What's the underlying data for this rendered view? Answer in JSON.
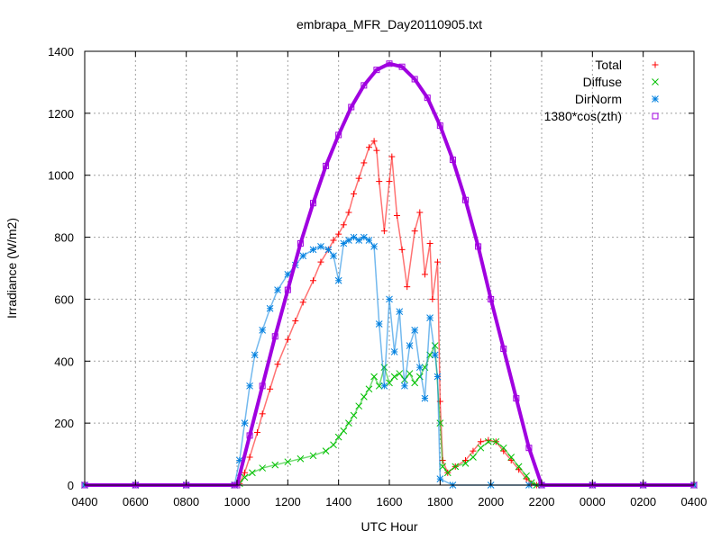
{
  "chart_data": {
    "type": "scatter",
    "title": "embrapa_MFR_Day20110905.txt",
    "xlabel": "UTC Hour",
    "ylabel": "Irradiance (W/m2)",
    "x_tick_labels": [
      "0400",
      "0600",
      "0800",
      "1000",
      "1200",
      "1400",
      "1600",
      "1800",
      "2000",
      "2200",
      "0000",
      "0200",
      "0400"
    ],
    "xlim": [
      4,
      28
    ],
    "ylim": [
      0,
      1400
    ],
    "y_ticks": [
      0,
      200,
      400,
      600,
      800,
      1000,
      1200,
      1400
    ],
    "grid": true,
    "legend_position": "top-right",
    "series": [
      {
        "name": "Total",
        "color": "#ff0000",
        "marker": "plus",
        "points": [
          [
            4,
            0
          ],
          [
            6,
            0
          ],
          [
            8,
            0
          ],
          [
            9.9,
            0
          ],
          [
            10.1,
            5
          ],
          [
            10.3,
            40
          ],
          [
            10.5,
            90
          ],
          [
            10.8,
            170
          ],
          [
            11,
            230
          ],
          [
            11.3,
            310
          ],
          [
            11.6,
            390
          ],
          [
            12,
            470
          ],
          [
            12.3,
            530
          ],
          [
            12.6,
            590
          ],
          [
            13,
            660
          ],
          [
            13.3,
            720
          ],
          [
            13.6,
            760
          ],
          [
            13.8,
            790
          ],
          [
            14,
            810
          ],
          [
            14.2,
            840
          ],
          [
            14.4,
            880
          ],
          [
            14.6,
            940
          ],
          [
            14.8,
            990
          ],
          [
            15,
            1040
          ],
          [
            15.2,
            1090
          ],
          [
            15.4,
            1110
          ],
          [
            15.5,
            1080
          ],
          [
            15.6,
            980
          ],
          [
            15.8,
            820
          ],
          [
            16,
            980
          ],
          [
            16.1,
            1060
          ],
          [
            16.3,
            870
          ],
          [
            16.5,
            760
          ],
          [
            16.7,
            640
          ],
          [
            17,
            820
          ],
          [
            17.2,
            880
          ],
          [
            17.4,
            680
          ],
          [
            17.6,
            780
          ],
          [
            17.7,
            600
          ],
          [
            17.9,
            720
          ],
          [
            18,
            270
          ],
          [
            18.1,
            80
          ],
          [
            18.3,
            40
          ],
          [
            18.6,
            60
          ],
          [
            19,
            80
          ],
          [
            19.3,
            110
          ],
          [
            19.6,
            140
          ],
          [
            19.9,
            145
          ],
          [
            20.2,
            140
          ],
          [
            20.5,
            110
          ],
          [
            20.8,
            80
          ],
          [
            21.1,
            50
          ],
          [
            21.4,
            20
          ],
          [
            21.6,
            5
          ],
          [
            21.8,
            0
          ],
          [
            24,
            0
          ],
          [
            26,
            0
          ],
          [
            28,
            0
          ]
        ]
      },
      {
        "name": "Diffuse",
        "color": "#00c000",
        "marker": "cross",
        "points": [
          [
            4,
            0
          ],
          [
            6,
            0
          ],
          [
            8,
            0
          ],
          [
            9.9,
            0
          ],
          [
            10.1,
            5
          ],
          [
            10.3,
            25
          ],
          [
            10.6,
            40
          ],
          [
            11,
            55
          ],
          [
            11.5,
            65
          ],
          [
            12,
            75
          ],
          [
            12.5,
            85
          ],
          [
            13,
            95
          ],
          [
            13.5,
            110
          ],
          [
            13.8,
            130
          ],
          [
            14,
            155
          ],
          [
            14.2,
            175
          ],
          [
            14.4,
            200
          ],
          [
            14.6,
            225
          ],
          [
            14.8,
            255
          ],
          [
            15,
            285
          ],
          [
            15.2,
            310
          ],
          [
            15.4,
            350
          ],
          [
            15.6,
            320
          ],
          [
            15.8,
            380
          ],
          [
            16,
            330
          ],
          [
            16.2,
            350
          ],
          [
            16.4,
            360
          ],
          [
            16.6,
            340
          ],
          [
            16.8,
            360
          ],
          [
            17,
            330
          ],
          [
            17.2,
            350
          ],
          [
            17.4,
            380
          ],
          [
            17.6,
            420
          ],
          [
            17.8,
            450
          ],
          [
            18,
            200
          ],
          [
            18.1,
            60
          ],
          [
            18.3,
            40
          ],
          [
            18.6,
            60
          ],
          [
            19,
            70
          ],
          [
            19.3,
            90
          ],
          [
            19.6,
            120
          ],
          [
            19.9,
            140
          ],
          [
            20.2,
            140
          ],
          [
            20.5,
            120
          ],
          [
            20.8,
            90
          ],
          [
            21.1,
            60
          ],
          [
            21.4,
            30
          ],
          [
            21.6,
            8
          ],
          [
            21.8,
            0
          ],
          [
            24,
            0
          ],
          [
            26,
            0
          ],
          [
            28,
            0
          ]
        ]
      },
      {
        "name": "DirNorm",
        "color": "#0080e0",
        "marker": "star",
        "points": [
          [
            4,
            0
          ],
          [
            6,
            0
          ],
          [
            8,
            0
          ],
          [
            9.9,
            0
          ],
          [
            10.1,
            80
          ],
          [
            10.3,
            200
          ],
          [
            10.5,
            320
          ],
          [
            10.7,
            420
          ],
          [
            11,
            500
          ],
          [
            11.3,
            570
          ],
          [
            11.6,
            630
          ],
          [
            12,
            680
          ],
          [
            12.3,
            710
          ],
          [
            12.6,
            740
          ],
          [
            13,
            760
          ],
          [
            13.3,
            770
          ],
          [
            13.6,
            760
          ],
          [
            13.8,
            740
          ],
          [
            14,
            660
          ],
          [
            14.2,
            780
          ],
          [
            14.4,
            790
          ],
          [
            14.6,
            800
          ],
          [
            14.8,
            790
          ],
          [
            15,
            800
          ],
          [
            15.2,
            790
          ],
          [
            15.4,
            770
          ],
          [
            15.6,
            520
          ],
          [
            15.8,
            320
          ],
          [
            16,
            600
          ],
          [
            16.2,
            430
          ],
          [
            16.4,
            560
          ],
          [
            16.6,
            320
          ],
          [
            16.8,
            450
          ],
          [
            17,
            500
          ],
          [
            17.2,
            380
          ],
          [
            17.4,
            280
          ],
          [
            17.6,
            540
          ],
          [
            17.8,
            420
          ],
          [
            17.9,
            350
          ],
          [
            18,
            20
          ],
          [
            18.5,
            0
          ],
          [
            20,
            0
          ],
          [
            21.5,
            0
          ],
          [
            22,
            0
          ],
          [
            24,
            0
          ],
          [
            26,
            0
          ],
          [
            28,
            0
          ]
        ]
      },
      {
        "name": "1380*cos(zth)",
        "color": "#a000e0",
        "marker": "square",
        "points": [
          [
            4,
            0
          ],
          [
            6,
            0
          ],
          [
            8,
            0
          ],
          [
            9.9,
            0
          ],
          [
            10,
            0
          ],
          [
            10.5,
            160
          ],
          [
            11,
            320
          ],
          [
            11.5,
            480
          ],
          [
            12,
            630
          ],
          [
            12.5,
            780
          ],
          [
            13,
            910
          ],
          [
            13.5,
            1030
          ],
          [
            14,
            1130
          ],
          [
            14.5,
            1220
          ],
          [
            15,
            1290
          ],
          [
            15.5,
            1340
          ],
          [
            16,
            1360
          ],
          [
            16.5,
            1350
          ],
          [
            17,
            1310
          ],
          [
            17.5,
            1250
          ],
          [
            18,
            1160
          ],
          [
            18.5,
            1050
          ],
          [
            19,
            920
          ],
          [
            19.5,
            770
          ],
          [
            20,
            600
          ],
          [
            20.5,
            440
          ],
          [
            21,
            280
          ],
          [
            21.5,
            120
          ],
          [
            22,
            0
          ],
          [
            24,
            0
          ],
          [
            26,
            0
          ],
          [
            28,
            0
          ]
        ]
      }
    ]
  }
}
